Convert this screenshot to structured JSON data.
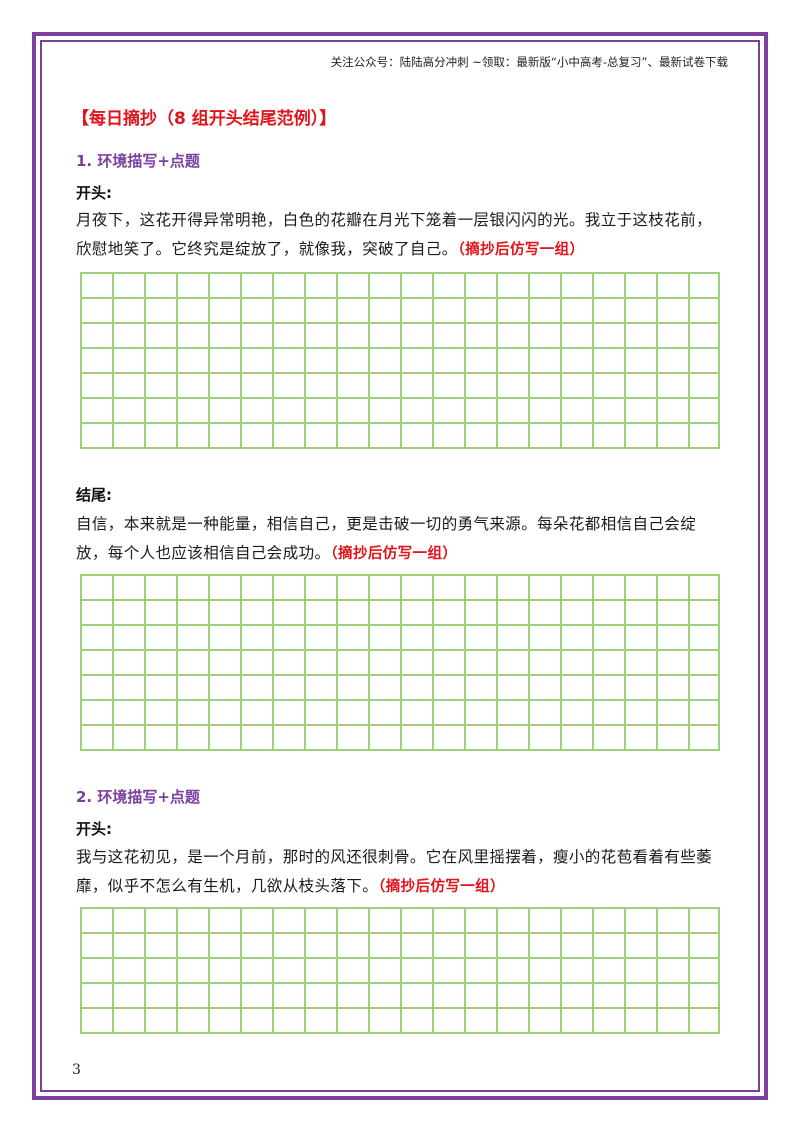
{
  "header": {
    "note": "关注公众号：陆陆高分冲刺 ~领取：最新版“小中高考-总复习”、最新试卷下载"
  },
  "title": "【每日摘抄（8 组开头结尾范例）】",
  "sections": [
    {
      "heading": "1. 环境描写+点题",
      "opening_label": "开头:",
      "opening_text": "月夜下，这花开得异常明艳，白色的花瓣在月光下笼着一层银闪闪的光。我立于这枝花前，欣慰地笑了。它终究是绽放了，就像我，突破了自己。",
      "opening_instruction": "（摘抄后仿写一组）",
      "ending_label": "结尾:",
      "ending_text": "自信，本来就是一种能量，相信自己，更是击破一切的勇气来源。每朵花都相信自己会绽放，每个人也应该相信自己会成功。",
      "ending_instruction": "（摘抄后仿写一组）"
    },
    {
      "heading": "2. 环境描写+点题",
      "opening_label": "开头:",
      "opening_text": "我与这花初见，是一个月前，那时的风还很刺骨。它在风里摇摆着，瘦小的花苞看着有些萎靡，似乎不怎么有生机，几欲从枝头落下。",
      "opening_instruction": "（摘抄后仿写一组）"
    }
  ],
  "page_number": "3",
  "colors": {
    "border": "#7b3fa0",
    "title": "#e0141b",
    "heading": "#7b3fa0",
    "grid": "#9fcf7a"
  }
}
